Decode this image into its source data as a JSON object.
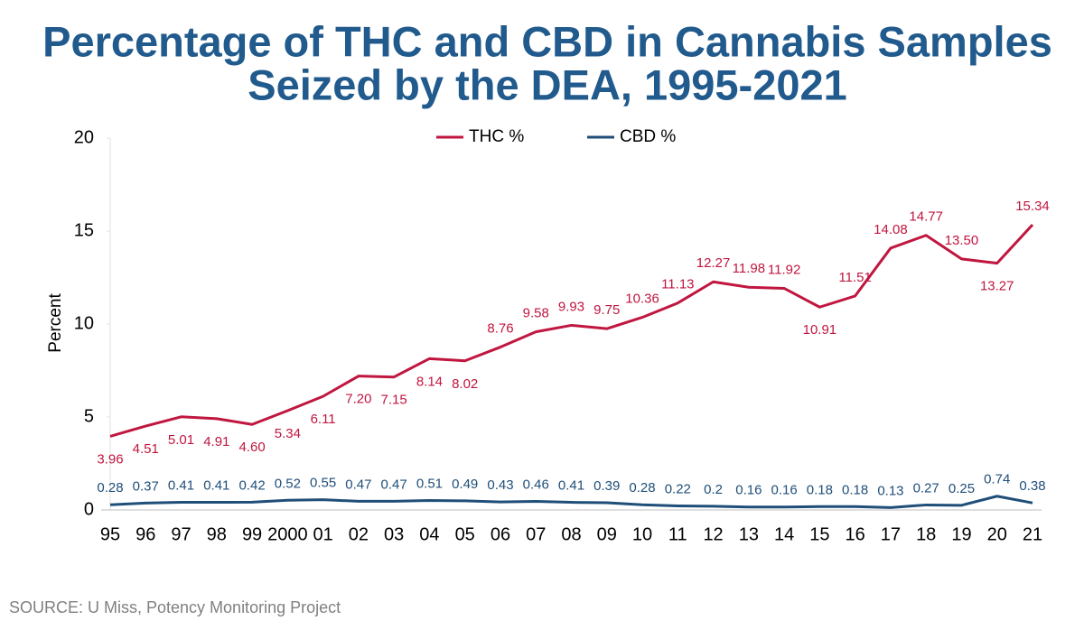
{
  "chart_data": {
    "type": "line",
    "title": [
      "Percentage of THC and CBD in Cannabis Samples",
      "Seized by the DEA, 1995-2021"
    ],
    "y_label": "Percent",
    "source": "SOURCE: U Miss, Potency Monitoring Project",
    "categories": [
      "95",
      "96",
      "97",
      "98",
      "99",
      "2000",
      "01",
      "02",
      "03",
      "04",
      "05",
      "06",
      "07",
      "08",
      "09",
      "10",
      "11",
      "12",
      "13",
      "14",
      "15",
      "16",
      "17",
      "18",
      "19",
      "20",
      "21"
    ],
    "series": [
      {
        "name": "THC %",
        "color": "#c0163f",
        "values": [
          3.96,
          4.51,
          5.01,
          4.91,
          4.6,
          5.34,
          6.11,
          7.2,
          7.15,
          8.14,
          8.02,
          8.76,
          9.58,
          9.93,
          9.75,
          10.36,
          11.13,
          12.27,
          11.98,
          11.92,
          10.91,
          11.51,
          14.08,
          14.77,
          13.5,
          13.27,
          15.34
        ],
        "value_labels": [
          "3.96",
          "4.51",
          "5.01",
          "4.91",
          "4.60",
          "5.34",
          "6.11",
          "7.20",
          "7.15",
          "8.14",
          "8.02",
          "8.76",
          "9.58",
          "9.93",
          "9.75",
          "10.36",
          "11.13",
          "12.27",
          "11.98",
          "11.92",
          "10.91",
          "11.51",
          "14.08",
          "14.77",
          "13.50",
          "13.27",
          "15.34"
        ]
      },
      {
        "name": "CBD %",
        "color": "#1f4e79",
        "values": [
          0.28,
          0.37,
          0.41,
          0.41,
          0.42,
          0.52,
          0.55,
          0.47,
          0.47,
          0.51,
          0.49,
          0.43,
          0.46,
          0.41,
          0.39,
          0.28,
          0.22,
          0.2,
          0.16,
          0.16,
          0.18,
          0.18,
          0.13,
          0.27,
          0.25,
          0.74,
          0.38
        ],
        "value_labels": [
          "0.28",
          "0.37",
          "0.41",
          "0.41",
          "0.42",
          "0.52",
          "0.55",
          "0.47",
          "0.47",
          "0.51",
          "0.49",
          "0.43",
          "0.46",
          "0.41",
          "0.39",
          "0.28",
          "0.22",
          "0.2",
          "0.16",
          "0.16",
          "0.18",
          "0.18",
          "0.13",
          "0.27",
          "0.25",
          "0.74",
          "0.38"
        ]
      }
    ],
    "ylim": [
      0,
      20
    ],
    "yticks": [
      0,
      5,
      10,
      15,
      20
    ],
    "legend": "top"
  }
}
